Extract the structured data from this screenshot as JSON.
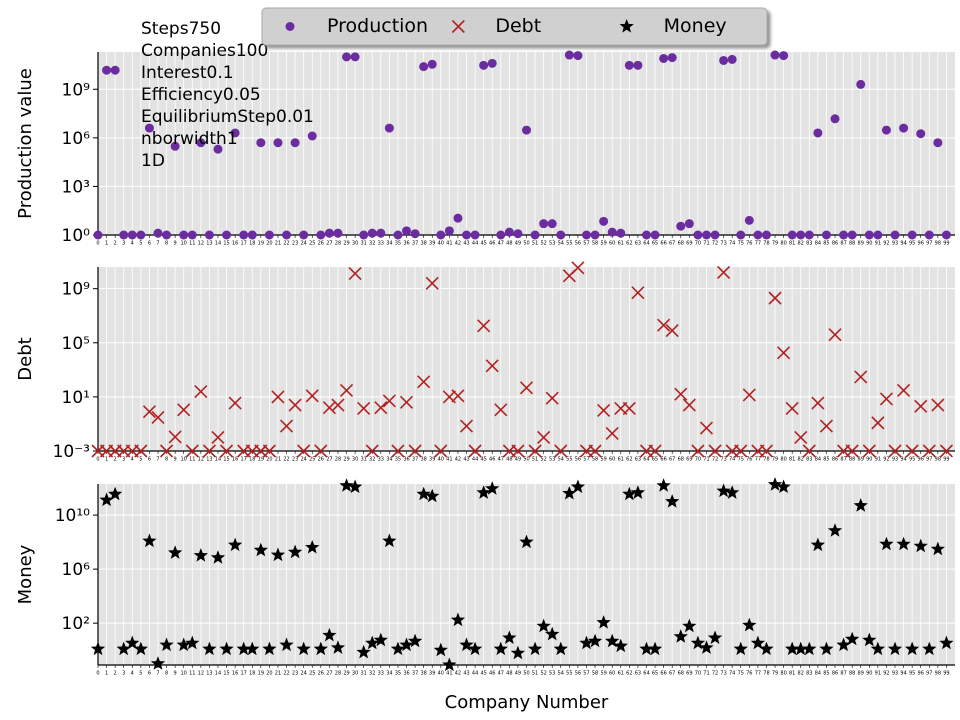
{
  "chart_data": [
    {
      "type": "scatter",
      "ylabel": "Production value",
      "yscale": "log",
      "grid": true,
      "legend": "upper center",
      "annotation": [
        "Steps750",
        "Companies100",
        "Interest0.1",
        "Efficiency0.05",
        "EquilibriumStep0.01",
        "nborwidth1",
        "1D"
      ],
      "ylim": [
        1,
        200000000000.0
      ],
      "yticks": [
        {
          "value": 1,
          "label": "10⁰"
        },
        {
          "value": 1000,
          "label": "10³"
        },
        {
          "value": 1000000,
          "label": "10⁶"
        },
        {
          "value": 1000000000,
          "label": "10⁹"
        }
      ],
      "xlim": [
        0,
        100
      ],
      "xticks": [
        0,
        1,
        2,
        3,
        4,
        5,
        6,
        7,
        8,
        9,
        10,
        11,
        12,
        13,
        14,
        15,
        16,
        17,
        18,
        19,
        20,
        21,
        22,
        23,
        24,
        25,
        26,
        27,
        28,
        29,
        30,
        31,
        32,
        33,
        34,
        35,
        36,
        37,
        38,
        39,
        40,
        41,
        42,
        43,
        44,
        45,
        46,
        47,
        48,
        49,
        50,
        51,
        52,
        53,
        54,
        55,
        56,
        57,
        58,
        59,
        60,
        61,
        62,
        63,
        64,
        65,
        66,
        67,
        68,
        69,
        70,
        71,
        72,
        73,
        74,
        75,
        76,
        77,
        78,
        79,
        80,
        81,
        82,
        83,
        84,
        85,
        86,
        87,
        88,
        89,
        90,
        91,
        92,
        93,
        94,
        95,
        96,
        97,
        98,
        99
      ],
      "x": [
        0,
        1,
        2,
        3,
        4,
        5,
        6,
        7,
        8,
        9,
        10,
        11,
        12,
        13,
        14,
        15,
        16,
        17,
        18,
        19,
        20,
        21,
        22,
        23,
        24,
        25,
        26,
        27,
        28,
        29,
        30,
        31,
        32,
        33,
        34,
        35,
        36,
        37,
        38,
        39,
        40,
        41,
        42,
        43,
        44,
        45,
        46,
        47,
        48,
        49,
        50,
        51,
        52,
        53,
        54,
        55,
        56,
        57,
        58,
        59,
        60,
        61,
        62,
        63,
        64,
        65,
        66,
        67,
        68,
        69,
        70,
        71,
        72,
        73,
        74,
        75,
        76,
        77,
        78,
        79,
        80,
        81,
        82,
        83,
        84,
        85,
        86,
        87,
        88,
        89,
        90,
        91,
        92,
        93,
        94,
        95,
        96,
        97,
        98,
        99
      ],
      "series": [
        {
          "name": "Production",
          "color": "#6a2c9e",
          "marker": "circle",
          "values": [
            1,
            15000000000.0,
            15000000000.0,
            1,
            1,
            1,
            4000000.0,
            1.3,
            1,
            300000.0,
            1,
            1,
            500000.0,
            1,
            200000.0,
            1,
            2000000.0,
            1,
            1,
            500000.0,
            1,
            500000.0,
            1,
            500000.0,
            1,
            1300000.0,
            1,
            1.3,
            1.3,
            100000000000.0,
            100000000000.0,
            1,
            1.3,
            1.3,
            4000000.0,
            1,
            1.8,
            1.2,
            25000000000.0,
            35000000000.0,
            1,
            1.8,
            11,
            1,
            1,
            30000000000.0,
            40000000000.0,
            1,
            1.5,
            1.2,
            3000000.0,
            1,
            5,
            5,
            1,
            130000000000.0,
            120000000000.0,
            1,
            1,
            7,
            1.5,
            1.3,
            30000000000.0,
            30000000000.0,
            1,
            1,
            80000000000.0,
            90000000000.0,
            3.5,
            5,
            1,
            1,
            1,
            60000000000.0,
            70000000000.0,
            1,
            8,
            1,
            1,
            130000000000.0,
            120000000000.0,
            1,
            1,
            1,
            2000000.0,
            1,
            15000000.0,
            1,
            1,
            2000000000.0,
            1,
            1,
            3000000.0,
            1,
            4000000.0,
            1,
            1800000.0,
            1,
            500000.0,
            1
          ]
        }
      ]
    },
    {
      "type": "scatter",
      "ylabel": "Debt",
      "yscale": "log",
      "grid": true,
      "ylim": [
        0.001,
        40000000000.0
      ],
      "yticks": [
        {
          "value": 0.001,
          "label": "10⁻³"
        },
        {
          "value": 10,
          "label": "10¹"
        },
        {
          "value": 100000,
          "label": "10⁵"
        },
        {
          "value": 1000000000,
          "label": "10⁹"
        }
      ],
      "xlim": [
        0,
        100
      ],
      "xticks": [
        0,
        1,
        2,
        3,
        4,
        5,
        6,
        7,
        8,
        9,
        10,
        11,
        12,
        13,
        14,
        15,
        16,
        17,
        18,
        19,
        20,
        21,
        22,
        23,
        24,
        25,
        26,
        27,
        28,
        29,
        30,
        31,
        32,
        33,
        34,
        35,
        36,
        37,
        38,
        39,
        40,
        41,
        42,
        43,
        44,
        45,
        46,
        47,
        48,
        49,
        50,
        51,
        52,
        53,
        54,
        55,
        56,
        57,
        58,
        59,
        60,
        61,
        62,
        63,
        64,
        65,
        66,
        67,
        68,
        69,
        70,
        71,
        72,
        73,
        74,
        75,
        76,
        77,
        78,
        79,
        80,
        81,
        82,
        83,
        84,
        85,
        86,
        87,
        88,
        89,
        90,
        91,
        92,
        93,
        94,
        95,
        96,
        97,
        98,
        99
      ],
      "x": [
        0,
        1,
        2,
        3,
        4,
        5,
        6,
        7,
        8,
        9,
        10,
        11,
        12,
        13,
        14,
        15,
        16,
        17,
        18,
        19,
        20,
        21,
        22,
        23,
        24,
        25,
        26,
        27,
        28,
        29,
        30,
        31,
        32,
        33,
        34,
        35,
        36,
        37,
        38,
        39,
        40,
        41,
        42,
        43,
        44,
        45,
        46,
        47,
        48,
        49,
        50,
        51,
        52,
        53,
        54,
        55,
        56,
        57,
        58,
        59,
        60,
        61,
        62,
        63,
        64,
        65,
        66,
        67,
        68,
        69,
        70,
        71,
        72,
        73,
        74,
        75,
        76,
        77,
        78,
        79,
        80,
        81,
        82,
        83,
        84,
        85,
        86,
        87,
        88,
        89,
        90,
        91,
        92,
        93,
        94,
        95,
        96,
        97,
        98,
        99
      ],
      "series": [
        {
          "name": "Debt",
          "color": "#b22222",
          "marker": "x",
          "values": [
            0.001,
            0.001,
            0.001,
            0.001,
            0.001,
            0.001,
            0.8,
            0.3,
            0.001,
            0.011,
            1.1,
            0.001,
            25,
            0.001,
            0.01,
            0.001,
            3.5,
            0.001,
            0.001,
            0.001,
            0.001,
            10,
            0.07,
            2.5,
            0.001,
            12,
            0.001,
            1.6,
            2.5,
            30,
            13000000000.0,
            1.4,
            0.001,
            1.6,
            5,
            0.001,
            4,
            0.001,
            130,
            2500000000.0,
            0.001,
            10,
            12,
            0.07,
            0.001,
            1800000.0,
            2000,
            1.1,
            0.001,
            0.001,
            47,
            0.001,
            0.01,
            8,
            0.001,
            9000000000.0,
            35000000000.0,
            0.001,
            0.001,
            1,
            0.02,
            1.4,
            1.4,
            500000000.0,
            0.001,
            0.001,
            2000000.0,
            800000.0,
            16,
            2.5,
            0.001,
            0.05,
            0.001,
            16000000000.0,
            0.001,
            0.001,
            14,
            0.001,
            0.001,
            200000000.0,
            18000.0,
            1.4,
            0.01,
            0.001,
            3.5,
            0.07,
            400000.0,
            0.001,
            0.001,
            300,
            0.001,
            0.12,
            7,
            0.001,
            30,
            0.001,
            2,
            0.001,
            2.5,
            0.001
          ]
        }
      ]
    },
    {
      "type": "scatter",
      "ylabel": "Money",
      "xlabel": "Company Number",
      "yscale": "log",
      "grid": true,
      "ylim": [
        0.08,
        2000000000000.0
      ],
      "yticks": [
        {
          "value": 100,
          "label": "10²"
        },
        {
          "value": 1000000,
          "label": "10⁶"
        },
        {
          "value": 10000000000,
          "label": "10¹⁰"
        }
      ],
      "xlim": [
        0,
        100
      ],
      "xticks": [
        0,
        1,
        2,
        3,
        4,
        5,
        6,
        7,
        8,
        9,
        10,
        11,
        12,
        13,
        14,
        15,
        16,
        17,
        18,
        19,
        20,
        21,
        22,
        23,
        24,
        25,
        26,
        27,
        28,
        29,
        30,
        31,
        32,
        33,
        34,
        35,
        36,
        37,
        38,
        39,
        40,
        41,
        42,
        43,
        44,
        45,
        46,
        47,
        48,
        49,
        50,
        51,
        52,
        53,
        54,
        55,
        56,
        57,
        58,
        59,
        60,
        61,
        62,
        63,
        64,
        65,
        66,
        67,
        68,
        69,
        70,
        71,
        72,
        73,
        74,
        75,
        76,
        77,
        78,
        79,
        80,
        81,
        82,
        83,
        84,
        85,
        86,
        87,
        88,
        89,
        90,
        91,
        92,
        93,
        94,
        95,
        96,
        97,
        98,
        99
      ],
      "x": [
        0,
        1,
        2,
        3,
        4,
        5,
        6,
        7,
        8,
        9,
        10,
        11,
        12,
        13,
        14,
        15,
        16,
        17,
        18,
        19,
        20,
        21,
        22,
        23,
        24,
        25,
        26,
        27,
        28,
        29,
        30,
        31,
        32,
        33,
        34,
        35,
        36,
        37,
        38,
        39,
        40,
        41,
        42,
        43,
        44,
        45,
        46,
        47,
        48,
        49,
        50,
        51,
        52,
        53,
        54,
        55,
        56,
        57,
        58,
        59,
        60,
        61,
        62,
        63,
        64,
        65,
        66,
        67,
        68,
        69,
        70,
        71,
        72,
        73,
        74,
        75,
        76,
        77,
        78,
        79,
        80,
        81,
        82,
        83,
        84,
        85,
        86,
        87,
        88,
        89,
        90,
        91,
        92,
        93,
        94,
        95,
        96,
        97,
        98,
        99
      ],
      "series": [
        {
          "name": "Money",
          "color": "#000000",
          "marker": "star",
          "values": [
            1.2,
            130000000000.0,
            350000000000.0,
            1.2,
            3.3,
            1.2,
            120000000.0,
            0.1,
            2.4,
            16000000.0,
            2.4,
            3.3,
            10000000.0,
            1.2,
            7000000.0,
            1.2,
            60000000.0,
            1.2,
            1.2,
            25000000.0,
            1.2,
            11000000.0,
            2.4,
            18000000.0,
            1.2,
            40000000.0,
            1.2,
            12.5,
            1.5,
            1500000000000.0,
            1200000000000.0,
            0.7,
            3.3,
            5.5,
            120000000.0,
            1.2,
            2.4,
            4.6,
            350000000000.0,
            250000000000.0,
            1,
            0.08,
            170,
            2.4,
            1.2,
            450000000000.0,
            900000000000.0,
            1.2,
            8,
            0.6,
            100000000.0,
            1.2,
            60,
            15,
            1.2,
            400000000000.0,
            1200000000000.0,
            3.3,
            4.6,
            110,
            4.6,
            2,
            350000000000.0,
            450000000000.0,
            1.2,
            1.2,
            1500000000000.0,
            100000000000.0,
            10,
            60,
            3.3,
            1.5,
            8,
            600000000000.0,
            450000000000.0,
            1.2,
            70,
            3.3,
            1.2,
            1800000000000.0,
            1200000000000.0,
            1.2,
            1.2,
            1.2,
            60000000.0,
            1.2,
            700000000.0,
            2.4,
            6.5,
            50000000000.0,
            5.5,
            1.2,
            70000000.0,
            1.2,
            70000000.0,
            1.2,
            50000000.0,
            1.2,
            30000000.0,
            3.3
          ]
        }
      ]
    }
  ]
}
